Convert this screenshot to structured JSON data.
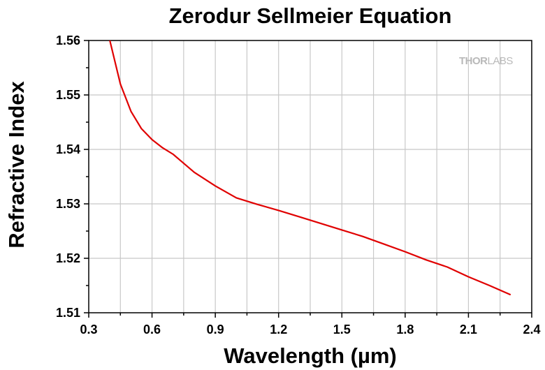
{
  "chart_data": {
    "type": "line",
    "title": "Zerodur Sellmeier Equation",
    "xlabel": "Wavelength (µm)",
    "ylabel": "Refractive Index",
    "xlim": [
      0.3,
      2.4
    ],
    "ylim": [
      1.51,
      1.56
    ],
    "x_ticks": [
      "0.3",
      "0.6",
      "0.9",
      "1.2",
      "1.5",
      "1.8",
      "2.1",
      "2.4"
    ],
    "y_ticks": [
      "1.51",
      "1.52",
      "1.53",
      "1.54",
      "1.55",
      "1.56"
    ],
    "grid": true,
    "series": [
      {
        "color": "#e00000",
        "x": [
          0.4,
          0.45,
          0.5,
          0.55,
          0.6,
          0.65,
          0.7,
          0.8,
          0.9,
          1.0,
          1.1,
          1.2,
          1.3,
          1.4,
          1.5,
          1.6,
          1.7,
          1.8,
          1.9,
          2.0,
          2.1,
          2.2,
          2.3
        ],
        "y": [
          1.56,
          1.552,
          1.547,
          1.5438,
          1.5418,
          1.5403,
          1.5391,
          1.5358,
          1.5333,
          1.5311,
          1.5299,
          1.5288,
          1.5276,
          1.5264,
          1.5252,
          1.524,
          1.5226,
          1.5212,
          1.5197,
          1.5184,
          1.5166,
          1.515,
          1.5133
        ]
      }
    ]
  },
  "logo": {
    "text_bold": "THOR",
    "text_light": "LABS"
  },
  "colors": {
    "grid": "#c8c8c8",
    "axis": "#000000",
    "line": "#e00000",
    "logo": "#b9b9b9"
  }
}
